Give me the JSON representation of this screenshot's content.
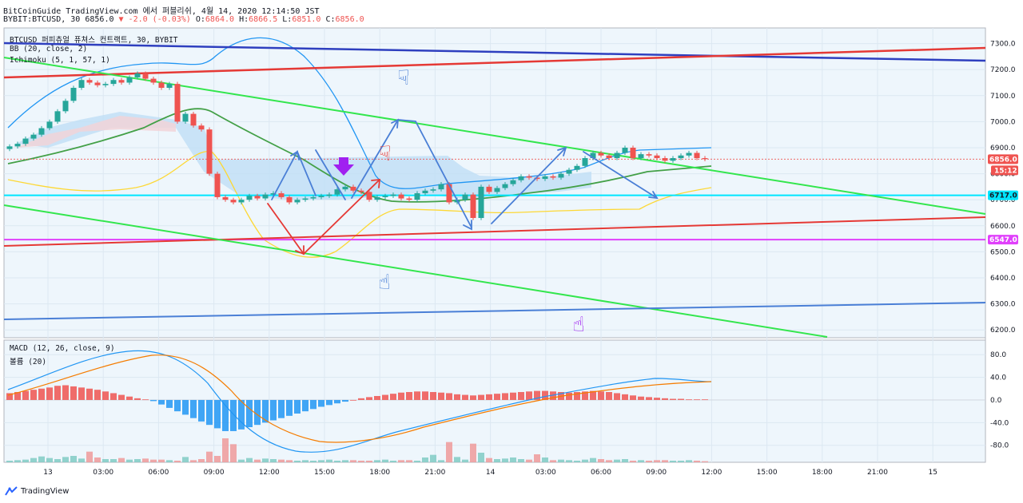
{
  "header": {
    "line1": "BitCoinGuide TradingView.com 에서 퍼블리쉬, 4월 14, 2020 12:14:50 JST",
    "symbol": "BYBIT:BTCUSD, 30",
    "price": "6856.0",
    "change": "▼ -2.0 (-0.03%)",
    "o_label": "O:",
    "o": "6864.0",
    "h_label": "H:",
    "h": "6866.5",
    "l_label": "L:",
    "l": "6851.0",
    "c_label": "C:",
    "c": "6856.0"
  },
  "legend": {
    "title": "BTCUSD 퍼피츄얼 퓨쳐스 컨트랙트, 30, BYBIT",
    "bb": "BB (20, close, 2)",
    "ichimoku": "Ichimoku (5, 1, 57, 1)",
    "macd": "MACD (12, 26, close, 9)",
    "volume": "볼륨 (20)"
  },
  "price_badges": {
    "current": "6856.0",
    "countdown": "15:12",
    "level_cyan": "6717.0",
    "level_magenta": "6547.0"
  },
  "footer": {
    "brand": "TradingView"
  },
  "colors": {
    "up": "#26a69a",
    "down": "#ef5350",
    "cyan": "#00e5ff",
    "magenta": "#e040fb",
    "red_line": "#e53935",
    "blue_line": "#2e3fbf",
    "green_line": "#33e64d",
    "lightblue_line": "#4a7fd6"
  },
  "chart_data": [
    {
      "type": "candlestick",
      "title": "BTCUSD 퍼피츄얼 퓨쳐스 컨트랙트, 30, BYBIT",
      "ylim": [
        6170,
        7360
      ],
      "y_ticks": [
        6200,
        6300,
        6400,
        6500,
        6600,
        6700,
        6800,
        6900,
        7000,
        7100,
        7200,
        7300
      ],
      "x_tick_labels": [
        "13",
        "03:00",
        "06:00",
        "09:00",
        "12:00",
        "15:00",
        "18:00",
        "21:00",
        "14",
        "03:00",
        "06:00",
        "09:00",
        "12:00",
        "15:00",
        "18:00",
        "21:00",
        "15"
      ],
      "closes": [
        6905,
        6915,
        6935,
        6950,
        6975,
        7000,
        7040,
        7080,
        7130,
        7160,
        7150,
        7140,
        7145,
        7160,
        7150,
        7170,
        7185,
        7165,
        7150,
        7130,
        7145,
        7000,
        7030,
        6985,
        6970,
        6800,
        6710,
        6700,
        6690,
        6700,
        6715,
        6705,
        6720,
        6725,
        6710,
        6690,
        6700,
        6705,
        6710,
        6715,
        6720,
        6740,
        6750,
        6735,
        6730,
        6700,
        6710,
        6715,
        6720,
        6705,
        6700,
        6725,
        6735,
        6740,
        6760,
        6690,
        6700,
        6720,
        6630,
        6750,
        6730,
        6745,
        6760,
        6775,
        6790,
        6785,
        6780,
        6790,
        6785,
        6800,
        6815,
        6830,
        6860,
        6880,
        6870,
        6860,
        6880,
        6900,
        6860,
        6875,
        6870,
        6860,
        6850,
        6860,
        6870,
        6880,
        6860,
        6856
      ],
      "levels": [
        {
          "price": 6717,
          "color": "cyan"
        },
        {
          "price": 6547,
          "color": "magenta"
        }
      ]
    },
    {
      "type": "bar",
      "title": "MACD (12, 26, close, 9)",
      "ylim": [
        -110,
        100
      ],
      "y_ticks": [
        80,
        40,
        0,
        -40,
        -80
      ],
      "histogram": [
        12,
        14,
        16,
        18,
        20,
        22,
        25,
        26,
        24,
        22,
        20,
        18,
        15,
        12,
        9,
        6,
        3,
        1,
        -2,
        -8,
        -14,
        -20,
        -26,
        -32,
        -38,
        -44,
        -50,
        -55,
        -55,
        -52,
        -48,
        -44,
        -40,
        -36,
        -32,
        -28,
        -24,
        -20,
        -16,
        -12,
        -9,
        -6,
        -3,
        0,
        3,
        5,
        7,
        9,
        11,
        13,
        14,
        15,
        15,
        14,
        13,
        12,
        10,
        9,
        8,
        9,
        10,
        11,
        12,
        13,
        14,
        15,
        16,
        16,
        15,
        14,
        13,
        14,
        15,
        16,
        15,
        14,
        12,
        10,
        8,
        6,
        5,
        4,
        3,
        2,
        2,
        1,
        1,
        1
      ]
    },
    {
      "type": "bar",
      "title": "볼륨 (20)",
      "values": [
        3,
        4,
        5,
        8,
        11,
        8,
        6,
        10,
        12,
        7,
        20,
        9,
        6,
        6,
        8,
        5,
        6,
        7,
        5,
        5,
        4,
        3,
        10,
        4,
        6,
        20,
        12,
        45,
        34,
        5,
        8,
        5,
        7,
        6,
        5,
        4,
        3,
        4,
        3,
        4,
        5,
        3,
        4,
        4,
        3,
        3,
        4,
        5,
        3,
        4,
        4,
        3,
        9,
        14,
        4,
        38,
        10,
        5,
        35,
        18,
        8,
        6,
        7,
        9,
        6,
        5,
        15,
        9,
        4,
        5,
        4,
        3,
        5,
        8,
        6,
        4,
        5,
        6,
        3,
        4,
        3,
        4,
        4,
        3,
        3,
        4,
        3,
        2
      ]
    }
  ]
}
